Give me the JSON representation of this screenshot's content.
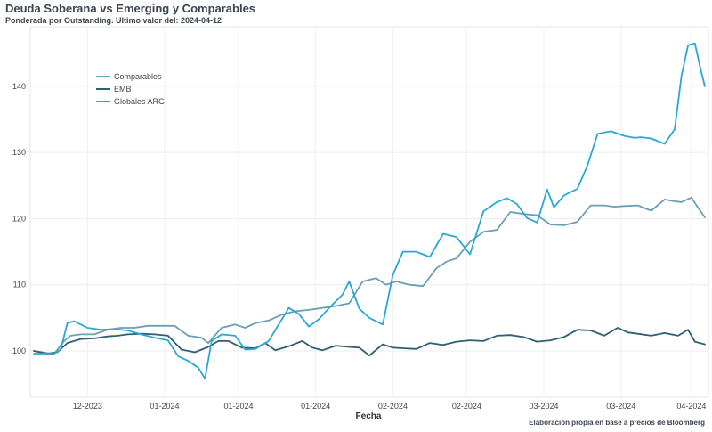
{
  "header": {
    "title": "Deuda Soberana vs Emerging y Comparables",
    "subtitle": "Ponderada por Outstanding. Ultimo valor del: 2024-04-12"
  },
  "footer": {
    "caption": "Elaboración propia en base a precios de Bloomberg"
  },
  "chart_data": {
    "type": "line",
    "title": "Deuda Soberana vs Emerging y Comparables",
    "subtitle": "Ponderada por Outstanding. Ultimo valor del: 2024-04-12",
    "xlabel": "Fecha",
    "ylabel": "",
    "ylim": [
      93,
      149
    ],
    "yticks": [
      100,
      110,
      120,
      130,
      140
    ],
    "x_index_range": [
      0,
      100
    ],
    "xticks": [
      {
        "x": 8,
        "label": "12-2023"
      },
      {
        "x": 19.5,
        "label": "01-2024"
      },
      {
        "x": 30.5,
        "label": "01-2024"
      },
      {
        "x": 42,
        "label": "01-2024"
      },
      {
        "x": 53.5,
        "label": "02-2024"
      },
      {
        "x": 64.5,
        "label": "02-2024"
      },
      {
        "x": 76,
        "label": "03-2024"
      },
      {
        "x": 87.5,
        "label": "03-2024"
      },
      {
        "x": 98,
        "label": "04-2024"
      }
    ],
    "grid": true,
    "legend": "top-left",
    "series": [
      {
        "name": "Comparables",
        "color": "#6b9fb2",
        "x": [
          0,
          3,
          4.5,
          5.5,
          7,
          9,
          11,
          13,
          15,
          17,
          19,
          21,
          23,
          25,
          26,
          28,
          30,
          31.5,
          33,
          35,
          37,
          39,
          41,
          43,
          45,
          47,
          49,
          51,
          52.5,
          54,
          56,
          58,
          60,
          61.5,
          63,
          65,
          67,
          69,
          71,
          73,
          75,
          77,
          79,
          81,
          83,
          85,
          86.5,
          88,
          90,
          92,
          94,
          95,
          96.5,
          98,
          99,
          100
        ],
        "values": [
          100,
          99.5,
          101.5,
          102.3,
          102.5,
          102.5,
          103.2,
          103.5,
          103.5,
          103.8,
          103.8,
          103.8,
          102.3,
          102,
          101.2,
          103.5,
          104,
          103.5,
          104.2,
          104.6,
          105.5,
          106,
          106.2,
          106.5,
          106.8,
          107.2,
          110.5,
          111,
          110,
          110.5,
          110,
          109.8,
          112.5,
          113.5,
          114,
          116.5,
          118,
          118.3,
          121,
          120.7,
          120.5,
          119.1,
          119,
          119.5,
          122,
          122,
          121.8,
          121.9,
          122,
          121.2,
          122.9,
          122.7,
          122.5,
          123.2,
          121.6,
          120.2
        ]
      },
      {
        "name": "EMB",
        "color": "#2f5f73",
        "x": [
          0,
          2,
          3.5,
          5,
          7,
          9,
          11,
          12.5,
          14,
          16,
          18,
          20,
          22,
          24,
          26,
          27.5,
          29,
          31,
          33,
          34.5,
          36,
          38,
          40,
          41.5,
          43,
          45,
          47,
          48.5,
          50,
          52,
          53.5,
          55,
          57,
          59,
          61,
          63,
          65,
          67,
          69,
          71,
          73,
          75,
          77,
          79,
          81,
          83,
          85,
          87,
          88.5,
          90,
          92,
          94,
          96,
          97.5,
          98.5,
          100
        ],
        "values": [
          100,
          99.6,
          99.8,
          101.2,
          101.8,
          101.9,
          102.2,
          102.3,
          102.5,
          102.6,
          102.5,
          102.3,
          100.2,
          99.8,
          100.6,
          101.5,
          101.5,
          100.5,
          100.4,
          101.2,
          100.1,
          100.7,
          101.5,
          100.5,
          100.1,
          100.8,
          100.6,
          100.5,
          99.3,
          101,
          100.5,
          100.4,
          100.3,
          101.2,
          100.9,
          101.4,
          101.6,
          101.5,
          102.3,
          102.4,
          102.1,
          101.4,
          101.6,
          102.1,
          103.2,
          103.1,
          102.3,
          103.5,
          102.8,
          102.6,
          102.3,
          102.7,
          102.3,
          103.2,
          101.4,
          101
        ]
      },
      {
        "name": "Globales ARG",
        "color": "#2aa7d5",
        "x": [
          0,
          3,
          4,
          5,
          6,
          8,
          10,
          12,
          14,
          16,
          18,
          20,
          21.5,
          23,
          24.5,
          25.5,
          26.5,
          28,
          30,
          31.5,
          33,
          35,
          36.5,
          38,
          39.5,
          41,
          42.5,
          44,
          46,
          47,
          48.5,
          50,
          52,
          53.5,
          55,
          57,
          59,
          61,
          63,
          65,
          67,
          69,
          70.5,
          72,
          73.5,
          75,
          76.5,
          77.5,
          79,
          81,
          82.5,
          84,
          86,
          88,
          89.5,
          90.5,
          92,
          94,
          95.5,
          96.5,
          97.5,
          98.5,
          99.5,
          100
        ],
        "values": [
          99.6,
          99.6,
          100.2,
          104.2,
          104.5,
          103.5,
          103.2,
          103.3,
          103.1,
          102.5,
          102,
          101.6,
          99.2,
          98.5,
          97.5,
          95.8,
          101.5,
          102.5,
          102.3,
          100.2,
          100.3,
          101.5,
          104,
          106.5,
          105.6,
          103.7,
          104.8,
          106.5,
          108.5,
          110.5,
          106.4,
          105,
          104,
          111.5,
          115,
          115,
          114.2,
          117.7,
          117.2,
          114.6,
          121.1,
          122.5,
          123.1,
          122.2,
          120.1,
          119.4,
          124.4,
          121.7,
          123.5,
          124.5,
          128,
          132.8,
          133.2,
          132.5,
          132.2,
          132.3,
          132.1,
          131.3,
          133.5,
          141.5,
          146.2,
          146.5,
          142,
          140
        ]
      }
    ]
  }
}
